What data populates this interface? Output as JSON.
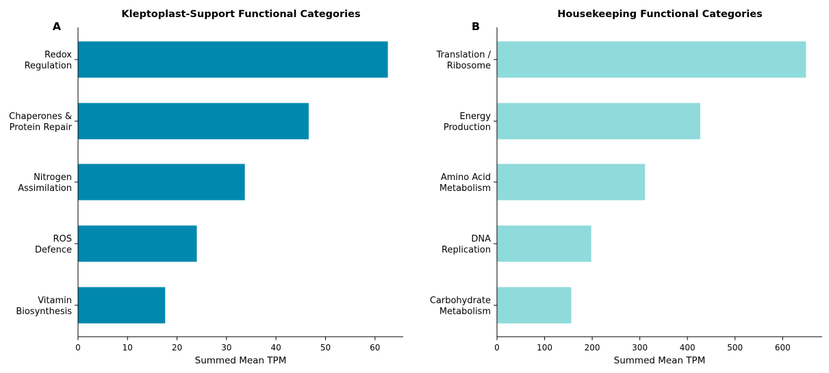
{
  "chart_data": [
    {
      "type": "bar",
      "orientation": "horizontal",
      "panel_label": "A",
      "title": "Kleptoplast-Support Functional Categories",
      "categories": [
        [
          "Redox",
          "Regulation"
        ],
        [
          "Chaperones &",
          "Protein Repair"
        ],
        [
          "Nitrogen",
          "Assimilation"
        ],
        [
          "ROS",
          "Defence"
        ],
        [
          "Vitamin",
          "Biosynthesis"
        ]
      ],
      "values": [
        62.6,
        46.6,
        33.7,
        24.0,
        17.6
      ],
      "xlabel": "Summed Mean TPM",
      "ylabel": "",
      "xlim": [
        0,
        65.7
      ],
      "xticks": [
        0,
        10,
        20,
        30,
        40,
        50,
        60
      ],
      "bar_color": "#0088AF",
      "grid": false
    },
    {
      "type": "bar",
      "orientation": "horizontal",
      "panel_label": "B",
      "title": "Housekeeping Functional Categories",
      "categories": [
        [
          "Translation /",
          "Ribosome"
        ],
        [
          "Energy",
          "Production"
        ],
        [
          "Amino Acid",
          "Metabolism"
        ],
        [
          "DNA",
          "Replication"
        ],
        [
          "Carbohydrate",
          "Metabolism"
        ]
      ],
      "values": [
        649,
        427,
        311,
        198,
        156
      ],
      "xlabel": "Summed Mean TPM",
      "ylabel": "",
      "xlim": [
        0,
        683
      ],
      "xticks": [
        0,
        100,
        200,
        300,
        400,
        500,
        600
      ],
      "bar_color": "#8FDADB",
      "grid": false
    }
  ]
}
